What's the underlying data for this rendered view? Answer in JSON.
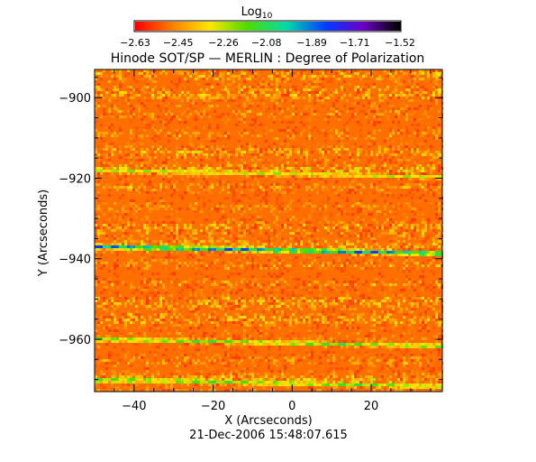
{
  "chart_data": {
    "type": "heatmap",
    "title": "Hinode SOT/SP — MERLIN : Degree of Polarization",
    "xlabel": "X (Arcseconds)",
    "ylabel": "Y (Arcseconds)",
    "timestamp": "21-Dec-2006 15:48:07.615",
    "xlim": [
      -50,
      38
    ],
    "ylim": [
      -973,
      -893
    ],
    "x_ticks": [
      -40,
      -20,
      0,
      20
    ],
    "y_ticks": [
      -900,
      -920,
      -940,
      -960
    ],
    "x_tick_labels": [
      "−40",
      "−20",
      "0",
      "20"
    ],
    "y_tick_labels": [
      "−900",
      "−920",
      "−940",
      "−960"
    ],
    "colorbar": {
      "title": "Log",
      "title_subscript": "10",
      "min": -2.63,
      "max": -1.52,
      "ticks": [
        -2.63,
        -2.45,
        -2.26,
        -2.08,
        -1.89,
        -1.71,
        -1.52
      ],
      "tick_labels": [
        "−2.63",
        "−2.45",
        "−2.26",
        "−2.08",
        "−1.89",
        "−1.71",
        "−1.52"
      ],
      "colormap": "rainbow (red to black)"
    },
    "features": [
      {
        "kind": "horizontal stripe",
        "y": -937,
        "peak_value": -1.8
      },
      {
        "kind": "horizontal stripe",
        "y": -960,
        "peak_value": -2.08
      },
      {
        "kind": "horizontal stripe",
        "y": -918,
        "peak_value": -2.2
      },
      {
        "kind": "horizontal stripe",
        "y": -970,
        "peak_value": -2.1
      }
    ],
    "background_value": -2.6
  }
}
